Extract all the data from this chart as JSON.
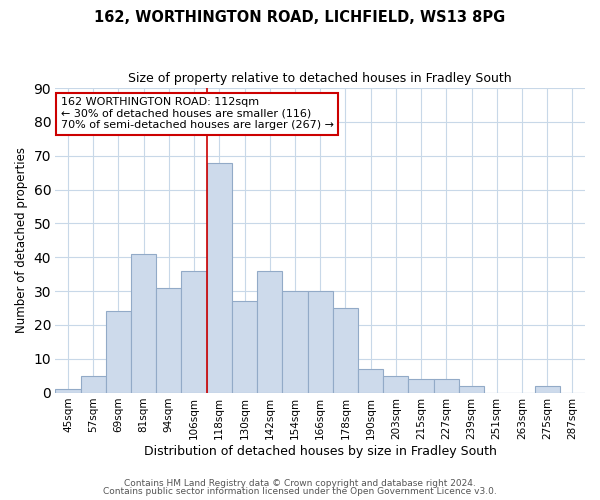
{
  "title": "162, WORTHINGTON ROAD, LICHFIELD, WS13 8PG",
  "subtitle": "Size of property relative to detached houses in Fradley South",
  "xlabel": "Distribution of detached houses by size in Fradley South",
  "ylabel": "Number of detached properties",
  "bin_labels": [
    "45sqm",
    "57sqm",
    "69sqm",
    "81sqm",
    "94sqm",
    "106sqm",
    "118sqm",
    "130sqm",
    "142sqm",
    "154sqm",
    "166sqm",
    "178sqm",
    "190sqm",
    "203sqm",
    "215sqm",
    "227sqm",
    "239sqm",
    "251sqm",
    "263sqm",
    "275sqm",
    "287sqm"
  ],
  "bin_counts": [
    1,
    5,
    24,
    41,
    31,
    36,
    68,
    27,
    36,
    30,
    30,
    25,
    7,
    5,
    4,
    4,
    2,
    0,
    0,
    2,
    0
  ],
  "bar_color": "#cddaeb",
  "bar_edgecolor": "#92aac7",
  "vline_x_index": 5.5,
  "vline_color": "#cc0000",
  "annotation_text": "162 WORTHINGTON ROAD: 112sqm\n← 30% of detached houses are smaller (116)\n70% of semi-detached houses are larger (267) →",
  "annotation_box_edgecolor": "#cc0000",
  "ylim": [
    0,
    90
  ],
  "yticks": [
    0,
    10,
    20,
    30,
    40,
    50,
    60,
    70,
    80,
    90
  ],
  "footnote_line1": "Contains HM Land Registry data © Crown copyright and database right 2024.",
  "footnote_line2": "Contains public sector information licensed under the Open Government Licence v3.0.",
  "background_color": "#ffffff",
  "grid_color": "#c8d8e8"
}
